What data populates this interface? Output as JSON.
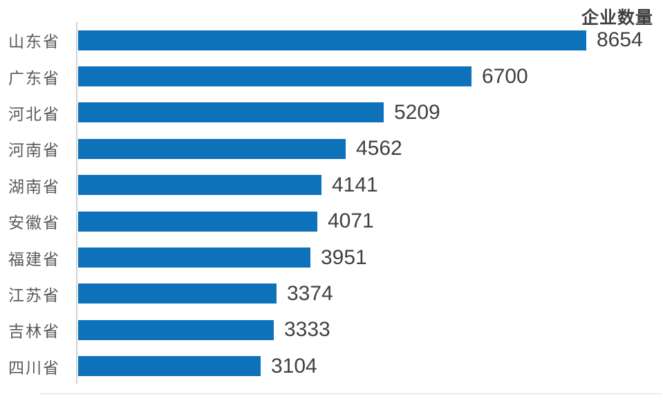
{
  "chart_data": {
    "type": "bar",
    "orientation": "horizontal",
    "title": "企业数量",
    "categories": [
      "山东省",
      "广东省",
      "河北省",
      "河南省",
      "湖南省",
      "安徽省",
      "福建省",
      "江苏省",
      "吉林省",
      "四川省"
    ],
    "values": [
      8654,
      6700,
      5209,
      4562,
      4141,
      4071,
      3951,
      3374,
      3333,
      3104
    ],
    "xlabel": "",
    "ylabel": "",
    "xlim": [
      0,
      8654
    ],
    "data_labels": true,
    "legend": "none",
    "grid": false,
    "bar_color": "#0d72ba",
    "value_label_color": "#404040",
    "category_label_color": "#595959",
    "title_color": "#3f3f3f",
    "axis_line_color": "#d2d2d2"
  }
}
